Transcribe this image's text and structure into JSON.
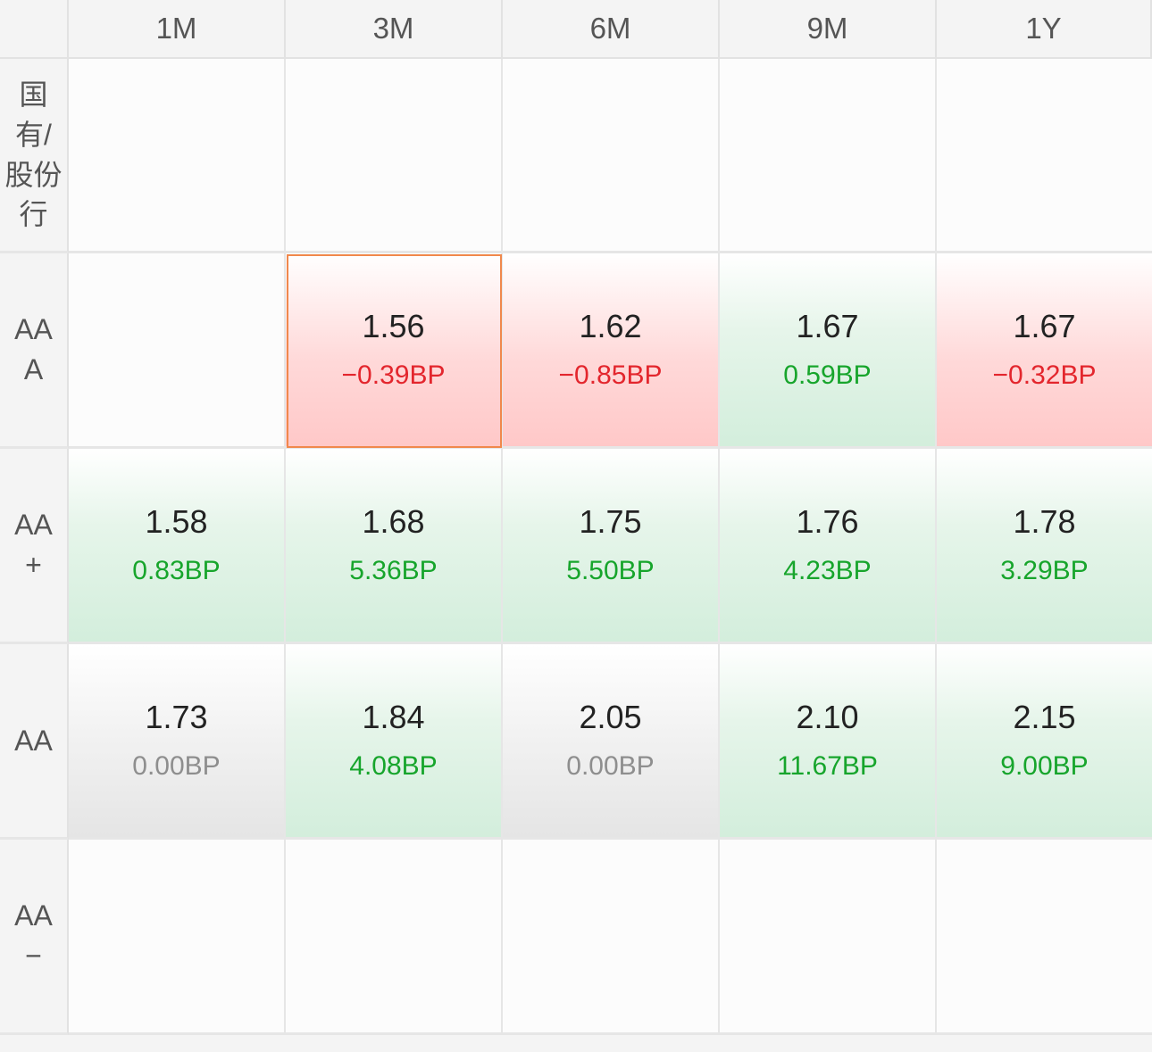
{
  "columns": [
    "1M",
    "3M",
    "6M",
    "9M",
    "1Y"
  ],
  "rows": [
    {
      "label": "国\n有/\n股份\n行",
      "cells": [
        {
          "rate": "",
          "bp": "",
          "tone": "empty"
        },
        {
          "rate": "",
          "bp": "",
          "tone": "empty"
        },
        {
          "rate": "",
          "bp": "",
          "tone": "empty"
        },
        {
          "rate": "",
          "bp": "",
          "tone": "empty"
        },
        {
          "rate": "",
          "bp": "",
          "tone": "empty"
        }
      ]
    },
    {
      "label": "AA\nA",
      "cells": [
        {
          "rate": "",
          "bp": "",
          "tone": "empty"
        },
        {
          "rate": "1.56",
          "bp": "−0.39BP",
          "tone": "neg",
          "selected": true
        },
        {
          "rate": "1.62",
          "bp": "−0.85BP",
          "tone": "neg"
        },
        {
          "rate": "1.67",
          "bp": "0.59BP",
          "tone": "pos"
        },
        {
          "rate": "1.67",
          "bp": "−0.32BP",
          "tone": "neg"
        }
      ]
    },
    {
      "label": "AA\n+",
      "cells": [
        {
          "rate": "1.58",
          "bp": "0.83BP",
          "tone": "pos"
        },
        {
          "rate": "1.68",
          "bp": "5.36BP",
          "tone": "pos"
        },
        {
          "rate": "1.75",
          "bp": "5.50BP",
          "tone": "pos"
        },
        {
          "rate": "1.76",
          "bp": "4.23BP",
          "tone": "pos"
        },
        {
          "rate": "1.78",
          "bp": "3.29BP",
          "tone": "pos"
        }
      ]
    },
    {
      "label": "AA",
      "cells": [
        {
          "rate": "1.73",
          "bp": "0.00BP",
          "tone": "zero"
        },
        {
          "rate": "1.84",
          "bp": "4.08BP",
          "tone": "pos"
        },
        {
          "rate": "2.05",
          "bp": "0.00BP",
          "tone": "zero"
        },
        {
          "rate": "2.10",
          "bp": "11.67BP",
          "tone": "pos"
        },
        {
          "rate": "2.15",
          "bp": "9.00BP",
          "tone": "pos"
        }
      ]
    },
    {
      "label": "AA\n−",
      "cells": [
        {
          "rate": "",
          "bp": "",
          "tone": "empty"
        },
        {
          "rate": "",
          "bp": "",
          "tone": "empty"
        },
        {
          "rate": "",
          "bp": "",
          "tone": "empty"
        },
        {
          "rate": "",
          "bp": "",
          "tone": "empty"
        },
        {
          "rate": "",
          "bp": "",
          "tone": "empty"
        }
      ]
    }
  ],
  "colors": {
    "negative": "#e3262d",
    "positive": "#17a52c",
    "neutral": "#8e8e8e",
    "selection": "#f0884c"
  }
}
